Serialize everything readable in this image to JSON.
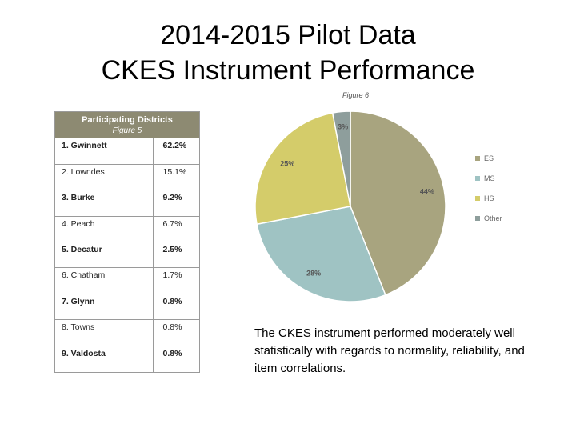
{
  "slide": {
    "title_line1": "2014-2015 Pilot Data",
    "title_line2": "CKES Instrument Performance",
    "body_text": "The CKES instrument performed moderately well statistically with regards to normality, reliability, and item correlations."
  },
  "districts_table": {
    "title": "Participating Districts",
    "figure_label": "Figure 5",
    "rows": [
      {
        "name": "1. Gwinnett",
        "pct": "62.2%",
        "bold": true
      },
      {
        "name": "2. Lowndes",
        "pct": "15.1%",
        "bold": false
      },
      {
        "name": "3. Burke",
        "pct": "9.2%",
        "bold": true
      },
      {
        "name": "4. Peach",
        "pct": "6.7%",
        "bold": false
      },
      {
        "name": "5. Decatur",
        "pct": "2.5%",
        "bold": true
      },
      {
        "name": "6. Chatham",
        "pct": "1.7%",
        "bold": false
      },
      {
        "name": "7. Glynn",
        "pct": "0.8%",
        "bold": true
      },
      {
        "name": "8. Towns",
        "pct": "0.8%",
        "bold": false
      },
      {
        "name": "9. Valdosta",
        "pct": "0.8%",
        "bold": true
      }
    ]
  },
  "chart_data": {
    "type": "pie",
    "figure_label": "Figure 6",
    "categories": [
      "ES",
      "MS",
      "HS",
      "Other"
    ],
    "values": [
      44,
      28,
      25,
      3
    ],
    "data_labels": [
      "44%",
      "28%",
      "25%",
      "3%"
    ],
    "colors": [
      "#a8a47f",
      "#9fc3c3",
      "#d4cc6a",
      "#8e9e9c"
    ],
    "legend_position": "right"
  }
}
